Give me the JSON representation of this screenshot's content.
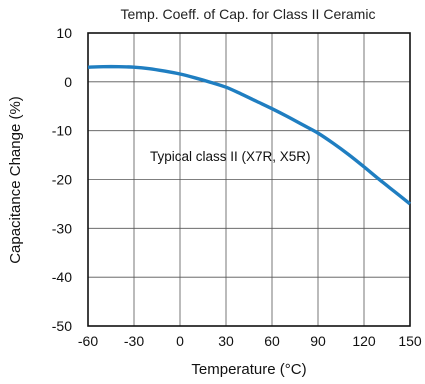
{
  "chart_data": {
    "type": "line",
    "title": "Temp. Coeff. of Cap. for Class II Ceramic",
    "xlabel": "Temperature (°C)",
    "ylabel": "Capacitance Change (%)",
    "xlim": [
      -60,
      150
    ],
    "ylim": [
      -50,
      10
    ],
    "xticks": [
      -60,
      -30,
      0,
      30,
      60,
      90,
      120,
      150
    ],
    "yticks": [
      10,
      0,
      -10,
      -20,
      -30,
      -40,
      -50
    ],
    "grid": true,
    "annotation": "Typical class II (X7R, X5R)",
    "line_color": "#1f7ec1",
    "series": [
      {
        "x": [
          -60,
          -50,
          -40,
          -30,
          -20,
          -10,
          0,
          10,
          20,
          30,
          40,
          50,
          60,
          70,
          80,
          90,
          100,
          110,
          120,
          130,
          140,
          150
        ],
        "y": [
          3.0,
          3.1,
          3.1,
          3.0,
          2.7,
          2.2,
          1.6,
          0.8,
          -0.1,
          -1.1,
          -2.5,
          -4.0,
          -5.5,
          -7.1,
          -8.8,
          -10.5,
          -12.6,
          -14.9,
          -17.4,
          -20.0,
          -22.5,
          -25.0
        ]
      }
    ]
  }
}
